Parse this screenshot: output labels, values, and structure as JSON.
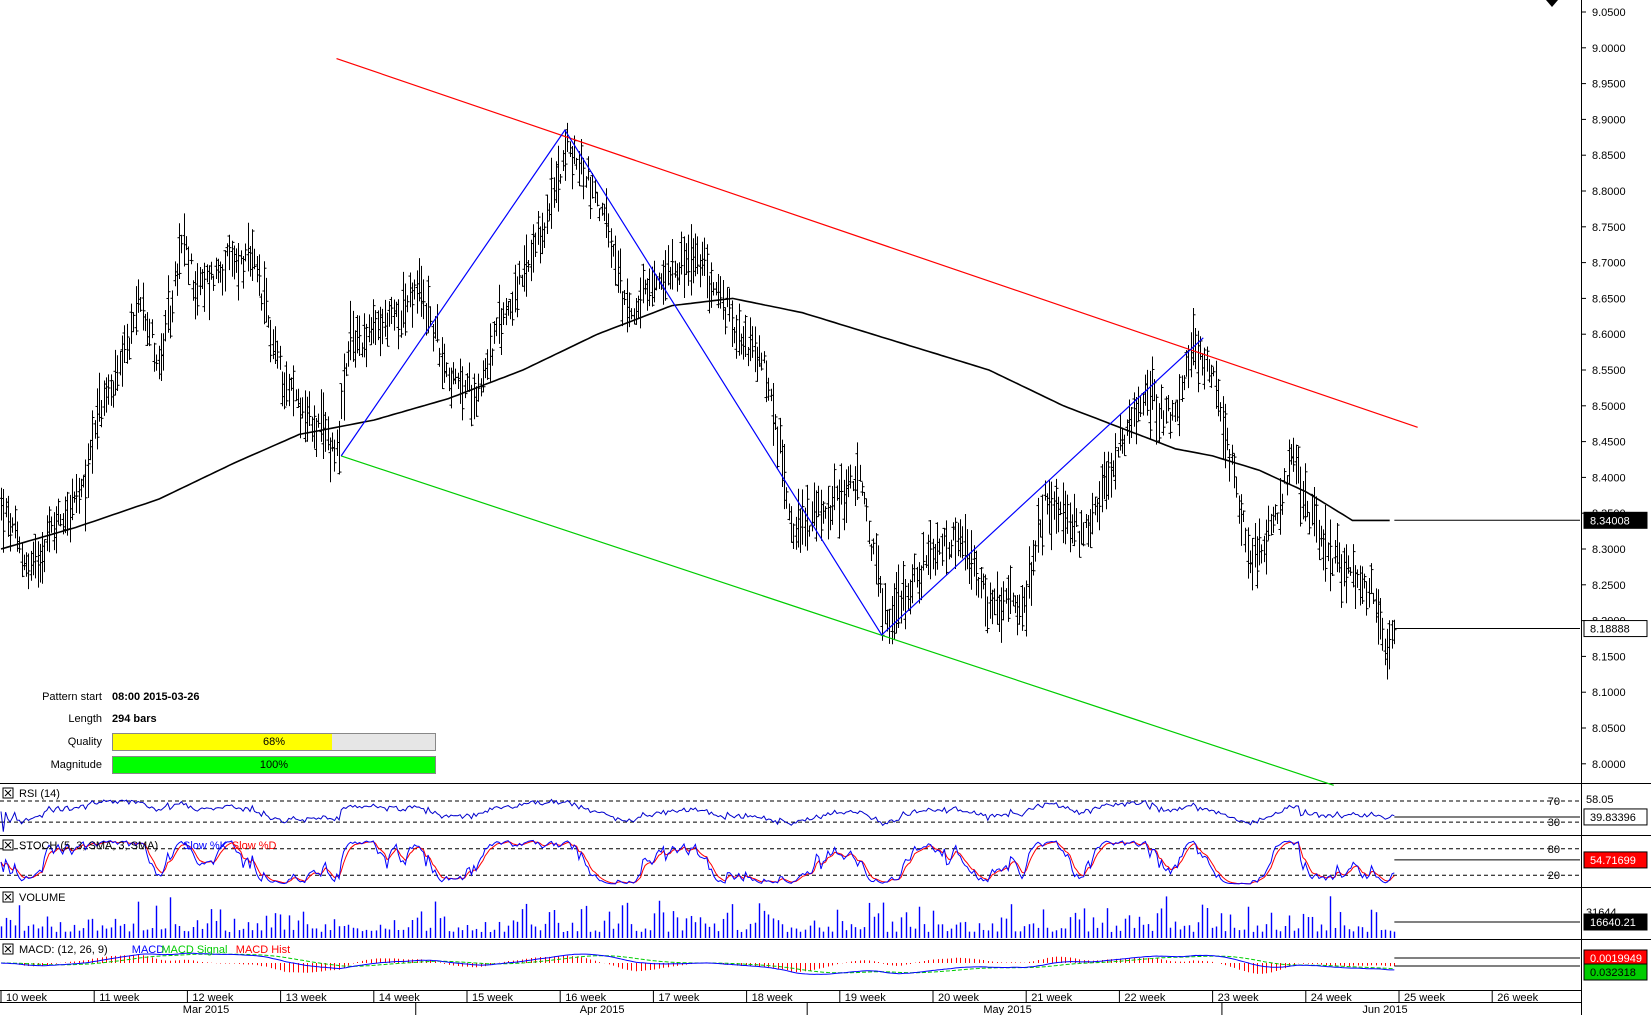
{
  "colors": {
    "price_bars": "#000000",
    "moving_average": "#000000",
    "channel_upper": "#ff0000",
    "channel_lower": "#00cc00",
    "pattern_zigzag": "#0000ff",
    "rsi_line": "#0000cc",
    "stoch_main": "#0000ff",
    "stoch_signal": "#ff0000",
    "volume_bars": "#0000ff",
    "macd_line": "#0000ff",
    "macd_signal": "#00cc00",
    "macd_hist": "#ff0000",
    "quality_fill": "#ffff00",
    "magnitude_fill": "#00ff00",
    "label_box_dark": "#000000",
    "label_box_red": "#ff0000",
    "label_box_green": "#00cc00"
  },
  "pattern_info": {
    "start_label": "Pattern start",
    "start_value": "08:00 2015-03-26",
    "length_label": "Length",
    "length_value": "294 bars",
    "quality_label": "Quality",
    "quality_text": "68%",
    "quality_pct": 68,
    "magnitude_label": "Magnitude",
    "magnitude_text": "100%",
    "magnitude_pct": 100
  },
  "chart_data": [
    {
      "type": "ohlc",
      "panel": "price",
      "y_ticks": [
        "9.0500",
        "9.0000",
        "8.9500",
        "8.9000",
        "8.8500",
        "8.8000",
        "8.7500",
        "8.7000",
        "8.6500",
        "8.6000",
        "8.5500",
        "8.5000",
        "8.4500",
        "8.4000",
        "8.3500",
        "8.3000",
        "8.2500",
        "8.2000",
        "8.1500",
        "8.1000",
        "8.0500",
        "8.0000"
      ],
      "ylim": [
        7.975,
        9.075
      ],
      "x_week_labels": [
        "10 week",
        "11 week",
        "12 week",
        "13 week",
        "14 week",
        "15 week",
        "16 week",
        "17 week",
        "18 week",
        "19 week",
        "20 week",
        "21 week",
        "22 week",
        "23 week",
        "24 week",
        "25 week",
        "26 week"
      ],
      "x_month_labels": [
        "Mar 2015",
        "Apr 2015",
        "May 2015",
        "Jun 2015"
      ],
      "price_anchors": [
        {
          "week": 10.0,
          "value": 8.36
        },
        {
          "week": 10.3,
          "value": 8.27
        },
        {
          "week": 10.6,
          "value": 8.34
        },
        {
          "week": 10.9,
          "value": 8.38
        },
        {
          "week": 11.0,
          "value": 8.48
        },
        {
          "week": 11.3,
          "value": 8.55
        },
        {
          "week": 11.5,
          "value": 8.66
        },
        {
          "week": 11.7,
          "value": 8.55
        },
        {
          "week": 11.95,
          "value": 8.73
        },
        {
          "week": 12.1,
          "value": 8.66
        },
        {
          "week": 12.4,
          "value": 8.7
        },
        {
          "week": 12.7,
          "value": 8.7
        },
        {
          "week": 13.0,
          "value": 8.55
        },
        {
          "week": 13.3,
          "value": 8.48
        },
        {
          "week": 13.6,
          "value": 8.44
        },
        {
          "week": 13.75,
          "value": 8.59
        },
        {
          "week": 14.0,
          "value": 8.6
        },
        {
          "week": 14.5,
          "value": 8.66
        },
        {
          "week": 14.85,
          "value": 8.53
        },
        {
          "week": 15.1,
          "value": 8.52
        },
        {
          "week": 15.4,
          "value": 8.63
        },
        {
          "week": 15.7,
          "value": 8.7
        },
        {
          "week": 15.9,
          "value": 8.78
        },
        {
          "week": 16.05,
          "value": 8.86
        },
        {
          "week": 16.3,
          "value": 8.82
        },
        {
          "week": 16.5,
          "value": 8.75
        },
        {
          "week": 16.7,
          "value": 8.63
        },
        {
          "week": 17.0,
          "value": 8.66
        },
        {
          "week": 17.2,
          "value": 8.7
        },
        {
          "week": 17.5,
          "value": 8.7
        },
        {
          "week": 17.8,
          "value": 8.63
        },
        {
          "week": 18.2,
          "value": 8.55
        },
        {
          "week": 18.5,
          "value": 8.33
        },
        {
          "week": 18.8,
          "value": 8.35
        },
        {
          "week": 19.2,
          "value": 8.4
        },
        {
          "week": 19.5,
          "value": 8.2
        },
        {
          "week": 19.8,
          "value": 8.26
        },
        {
          "week": 20.1,
          "value": 8.3
        },
        {
          "week": 20.3,
          "value": 8.31
        },
        {
          "week": 20.6,
          "value": 8.22
        },
        {
          "week": 21.0,
          "value": 8.22
        },
        {
          "week": 21.2,
          "value": 8.37
        },
        {
          "week": 21.6,
          "value": 8.32
        },
        {
          "week": 21.8,
          "value": 8.38
        },
        {
          "week": 22.0,
          "value": 8.44
        },
        {
          "week": 22.3,
          "value": 8.52
        },
        {
          "week": 22.6,
          "value": 8.48
        },
        {
          "week": 22.8,
          "value": 8.59
        },
        {
          "week": 23.0,
          "value": 8.55
        },
        {
          "week": 23.2,
          "value": 8.42
        },
        {
          "week": 23.4,
          "value": 8.29
        },
        {
          "week": 23.6,
          "value": 8.32
        },
        {
          "week": 23.85,
          "value": 8.42
        },
        {
          "week": 24.1,
          "value": 8.33
        },
        {
          "week": 24.4,
          "value": 8.27
        },
        {
          "week": 24.7,
          "value": 8.24
        },
        {
          "week": 24.85,
          "value": 8.17
        },
        {
          "week": 24.95,
          "value": 8.19
        }
      ],
      "moving_average": [
        {
          "week": 10.0,
          "value": 8.3
        },
        {
          "week": 10.8,
          "value": 8.33
        },
        {
          "week": 11.7,
          "value": 8.37
        },
        {
          "week": 12.5,
          "value": 8.42
        },
        {
          "week": 13.2,
          "value": 8.46
        },
        {
          "week": 14.0,
          "value": 8.48
        },
        {
          "week": 14.8,
          "value": 8.51
        },
        {
          "week": 15.6,
          "value": 8.55
        },
        {
          "week": 16.4,
          "value": 8.6
        },
        {
          "week": 17.2,
          "value": 8.64
        },
        {
          "week": 17.85,
          "value": 8.65
        },
        {
          "week": 18.6,
          "value": 8.63
        },
        {
          "week": 19.6,
          "value": 8.59
        },
        {
          "week": 20.6,
          "value": 8.55
        },
        {
          "week": 21.4,
          "value": 8.5
        },
        {
          "week": 22.0,
          "value": 8.47
        },
        {
          "week": 22.6,
          "value": 8.44
        },
        {
          "week": 23.0,
          "value": 8.43
        },
        {
          "week": 23.5,
          "value": 8.41
        },
        {
          "week": 24.0,
          "value": 8.38
        },
        {
          "week": 24.5,
          "value": 8.34
        },
        {
          "week": 24.95,
          "value": 8.34
        }
      ],
      "channel_upper": [
        {
          "week": 13.6,
          "value": 8.985
        },
        {
          "week": 25.2,
          "value": 8.47
        }
      ],
      "channel_lower": [
        {
          "week": 13.65,
          "value": 8.43
        },
        {
          "week": 24.3,
          "value": 7.97
        }
      ],
      "zigzag": [
        {
          "week": 13.65,
          "value": 8.43
        },
        {
          "week": 16.05,
          "value": 8.885
        },
        {
          "week": 19.45,
          "value": 8.18
        },
        {
          "week": 22.9,
          "value": 8.595
        }
      ],
      "last_values": [
        {
          "label": "8.34008",
          "value": 8.34008,
          "style": "dark"
        },
        {
          "label": "8.18888",
          "value": 8.18888,
          "style": "light"
        }
      ]
    },
    {
      "type": "line",
      "panel": "rsi",
      "title": "RSI (14)",
      "levels": [
        "70",
        "30"
      ],
      "extra_tick": "58.05",
      "last_value": "39.83396"
    },
    {
      "type": "line",
      "panel": "stochastic",
      "title": "STOCH (5, 3, SMA, 3, SMA)",
      "series_names": [
        "Slow %K",
        "Slow %D"
      ],
      "levels": [
        "80",
        "20"
      ],
      "last_value": "54.71699"
    },
    {
      "type": "bar",
      "panel": "volume",
      "title": "VOLUME",
      "extra_tick": "31644",
      "last_value": "16640.21"
    },
    {
      "type": "line",
      "panel": "macd",
      "title": "MACD: (12, 26, 9)",
      "series_names": [
        "MACD",
        "MACD Signal",
        "MACD Hist"
      ],
      "last_values": [
        "0.0019949",
        "0.032318"
      ]
    }
  ]
}
